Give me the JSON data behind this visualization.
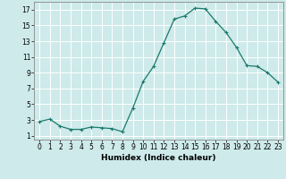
{
  "x": [
    0,
    1,
    2,
    3,
    4,
    5,
    6,
    7,
    8,
    9,
    10,
    11,
    12,
    13,
    14,
    15,
    16,
    17,
    18,
    19,
    20,
    21,
    22,
    23
  ],
  "y": [
    2.8,
    3.1,
    2.2,
    1.8,
    1.8,
    2.1,
    2.0,
    1.9,
    1.5,
    4.5,
    7.9,
    9.8,
    12.8,
    15.8,
    16.2,
    17.2,
    17.1,
    15.5,
    14.1,
    12.2,
    9.9,
    9.8,
    9.0,
    7.8
  ],
  "line_color": "#1a7a6e",
  "marker": "+",
  "marker_size": 3,
  "xlabel": "Humidex (Indice chaleur)",
  "xlim": [
    -0.5,
    23.5
  ],
  "ylim": [
    0.5,
    18.0
  ],
  "yticks": [
    1,
    3,
    5,
    7,
    9,
    11,
    13,
    15,
    17
  ],
  "ytick_labels": [
    "1",
    "3",
    "5",
    "7",
    "9",
    "11",
    "13",
    "15",
    "17"
  ],
  "xticks": [
    0,
    1,
    2,
    3,
    4,
    5,
    6,
    7,
    8,
    9,
    10,
    11,
    12,
    13,
    14,
    15,
    16,
    17,
    18,
    19,
    20,
    21,
    22,
    23
  ],
  "xtick_labels": [
    "0",
    "1",
    "2",
    "3",
    "4",
    "5",
    "6",
    "7",
    "8",
    "9",
    "10",
    "11",
    "12",
    "13",
    "14",
    "15",
    "16",
    "17",
    "18",
    "19",
    "20",
    "21",
    "22",
    "23"
  ],
  "bg_color": "#ceeaea",
  "grid_color": "#ffffff",
  "tick_fontsize": 5.5,
  "xlabel_fontsize": 6.5
}
